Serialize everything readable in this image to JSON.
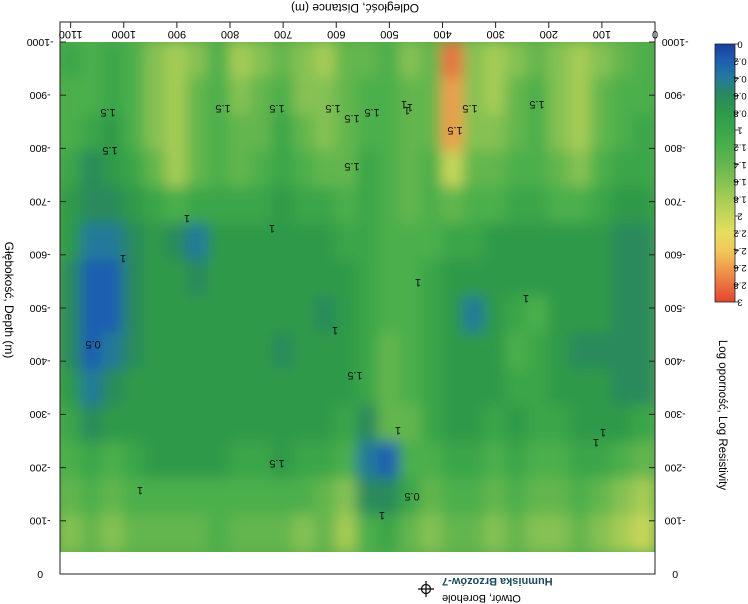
{
  "chart_data": {
    "type": "heatmap",
    "orientation": "rotated 180 degrees",
    "title": "",
    "xlabel": "Odległość, Distance (m)",
    "ylabel": "Głębokość, Depth (m)",
    "x_ticks": [
      "0",
      "100",
      "200",
      "300",
      "400",
      "500",
      "600",
      "700",
      "800",
      "900",
      "1000",
      "1100"
    ],
    "y_ticks": [
      "-1000",
      "-900",
      "-800",
      "-700",
      "-600",
      "-500",
      "-400",
      "-300",
      "-200",
      "-100",
      "0"
    ],
    "xlim": [
      0,
      1120
    ],
    "ylim": [
      -1000,
      0
    ],
    "colorbar": {
      "label": "Log oporność, Log Resistivity",
      "ticks": [
        "0",
        "0.2",
        "0.4",
        "0.6",
        "0.8",
        "1",
        "1.2",
        "1.4",
        "1.6",
        "1.8",
        "2",
        "2.2",
        "2.4",
        "2.6",
        "2.8",
        "3"
      ],
      "colors": [
        "#1a3f9e",
        "#1f5fb0",
        "#247a9a",
        "#2a8a5c",
        "#2f9a4a",
        "#3aa64a",
        "#4caf4c",
        "#64b64e",
        "#85c152",
        "#a6cc55",
        "#c8d65a",
        "#e6de5e",
        "#f1c95a",
        "#ef9e4e",
        "#ea7040",
        "#e2462e"
      ]
    },
    "contour_labels": [
      "1.5",
      "1.5",
      "1.5",
      "1.5",
      "1.5",
      "1",
      "1.5",
      "1.5",
      "1.5",
      "1.5",
      "1.5",
      "1",
      "1",
      "1",
      "1",
      "1",
      "0.5",
      "1.5",
      "1",
      "1",
      "1",
      "1",
      "0.5",
      "1",
      "1.5",
      "1",
      "1",
      "1.5",
      "1"
    ],
    "grid": [
      [
        1.0,
        1.2,
        1.0,
        1.2,
        1.6,
        1.8,
        1.6,
        1.2,
        1.8,
        1.6,
        1.4,
        1.6,
        1.8,
        1.4,
        1.4,
        1.2,
        1.6,
        1.4,
        2.8,
        1.6,
        1.8,
        1.6,
        1.4,
        1.6,
        1.8,
        1.6,
        1.4,
        1.2
      ],
      [
        1.2,
        1.2,
        1.0,
        1.2,
        1.6,
        1.8,
        1.4,
        1.2,
        1.6,
        1.4,
        1.2,
        1.6,
        1.6,
        1.4,
        1.2,
        1.2,
        1.4,
        1.4,
        2.6,
        1.6,
        1.8,
        1.4,
        1.2,
        1.6,
        1.8,
        1.4,
        1.2,
        1.2
      ],
      [
        1.2,
        1.0,
        0.8,
        1.2,
        1.6,
        1.8,
        1.4,
        1.2,
        1.4,
        1.4,
        1.0,
        1.4,
        1.6,
        1.4,
        1.2,
        1.2,
        1.4,
        1.4,
        2.6,
        1.6,
        1.6,
        1.4,
        1.2,
        1.6,
        1.8,
        1.4,
        1.2,
        1.0
      ],
      [
        1.0,
        0.6,
        0.8,
        1.0,
        1.4,
        1.8,
        1.4,
        1.2,
        1.4,
        1.2,
        1.0,
        1.2,
        1.4,
        1.4,
        1.0,
        1.2,
        1.4,
        1.2,
        2.0,
        1.4,
        1.4,
        1.2,
        1.2,
        1.4,
        1.6,
        1.2,
        1.0,
        1.0
      ],
      [
        0.8,
        0.6,
        0.6,
        0.8,
        1.0,
        1.2,
        1.0,
        1.0,
        1.0,
        1.0,
        0.8,
        1.0,
        1.0,
        1.2,
        1.0,
        1.2,
        1.4,
        1.2,
        1.4,
        1.2,
        1.2,
        1.0,
        1.0,
        1.2,
        1.2,
        1.0,
        0.8,
        0.8
      ],
      [
        0.8,
        0.4,
        0.4,
        0.6,
        0.8,
        0.6,
        0.4,
        0.8,
        0.8,
        0.8,
        0.8,
        0.8,
        0.8,
        1.0,
        1.0,
        1.2,
        1.2,
        1.2,
        1.0,
        1.0,
        0.8,
        0.8,
        0.8,
        0.8,
        0.8,
        0.8,
        0.6,
        0.6
      ],
      [
        0.6,
        0.2,
        0.2,
        0.6,
        0.8,
        0.8,
        0.6,
        0.8,
        0.8,
        0.8,
        0.8,
        0.8,
        0.8,
        0.8,
        1.0,
        1.2,
        1.2,
        1.0,
        0.8,
        0.8,
        0.8,
        0.8,
        0.8,
        0.8,
        0.8,
        0.8,
        0.6,
        0.6
      ],
      [
        0.6,
        0.2,
        0.2,
        0.6,
        0.8,
        0.8,
        0.8,
        0.8,
        0.8,
        0.8,
        0.8,
        0.8,
        0.6,
        0.8,
        1.0,
        1.2,
        1.2,
        1.0,
        0.8,
        0.4,
        0.8,
        1.0,
        1.2,
        0.8,
        0.8,
        0.8,
        0.6,
        0.6
      ],
      [
        0.6,
        0.2,
        0.4,
        0.6,
        0.8,
        0.8,
        0.8,
        0.8,
        0.8,
        0.8,
        0.6,
        0.8,
        0.8,
        0.8,
        1.0,
        1.4,
        1.2,
        1.0,
        0.8,
        0.8,
        0.8,
        1.2,
        1.0,
        0.8,
        0.6,
        0.6,
        0.6,
        0.6
      ],
      [
        0.8,
        0.4,
        0.6,
        0.8,
        0.8,
        0.8,
        0.8,
        0.8,
        0.8,
        0.8,
        0.8,
        0.8,
        0.8,
        0.8,
        1.0,
        1.4,
        1.2,
        1.0,
        0.8,
        0.8,
        0.8,
        1.0,
        1.0,
        0.8,
        0.8,
        0.8,
        0.6,
        0.6
      ],
      [
        1.0,
        0.6,
        0.8,
        0.8,
        0.8,
        0.8,
        0.8,
        0.8,
        0.8,
        0.8,
        0.8,
        0.8,
        0.8,
        1.0,
        0.6,
        1.4,
        1.4,
        1.0,
        0.8,
        0.8,
        1.0,
        0.8,
        1.0,
        1.0,
        0.8,
        0.8,
        0.8,
        1.0
      ],
      [
        1.2,
        1.0,
        1.2,
        1.0,
        0.8,
        0.8,
        0.8,
        0.8,
        1.0,
        1.0,
        0.8,
        1.0,
        1.0,
        1.2,
        0.4,
        0.2,
        1.2,
        1.2,
        1.0,
        1.0,
        1.2,
        1.0,
        1.2,
        1.2,
        1.0,
        1.0,
        1.2,
        1.4
      ],
      [
        1.4,
        1.2,
        1.4,
        1.2,
        1.2,
        1.2,
        1.2,
        1.2,
        1.2,
        1.2,
        1.2,
        1.2,
        1.4,
        1.6,
        0.6,
        0.6,
        1.0,
        1.4,
        1.2,
        1.2,
        1.4,
        1.2,
        1.4,
        1.4,
        1.2,
        1.4,
        1.6,
        1.8
      ],
      [
        1.6,
        1.4,
        1.6,
        1.4,
        1.4,
        1.4,
        1.4,
        1.2,
        1.4,
        1.4,
        1.4,
        1.6,
        1.4,
        1.8,
        1.2,
        1.0,
        1.4,
        1.6,
        1.4,
        1.4,
        1.6,
        1.4,
        1.6,
        1.6,
        1.4,
        1.6,
        1.8,
        2.0
      ]
    ]
  },
  "legend_symbol": {
    "name": "Humniska Brzozów-7",
    "type": "Otwór, Borehole"
  }
}
